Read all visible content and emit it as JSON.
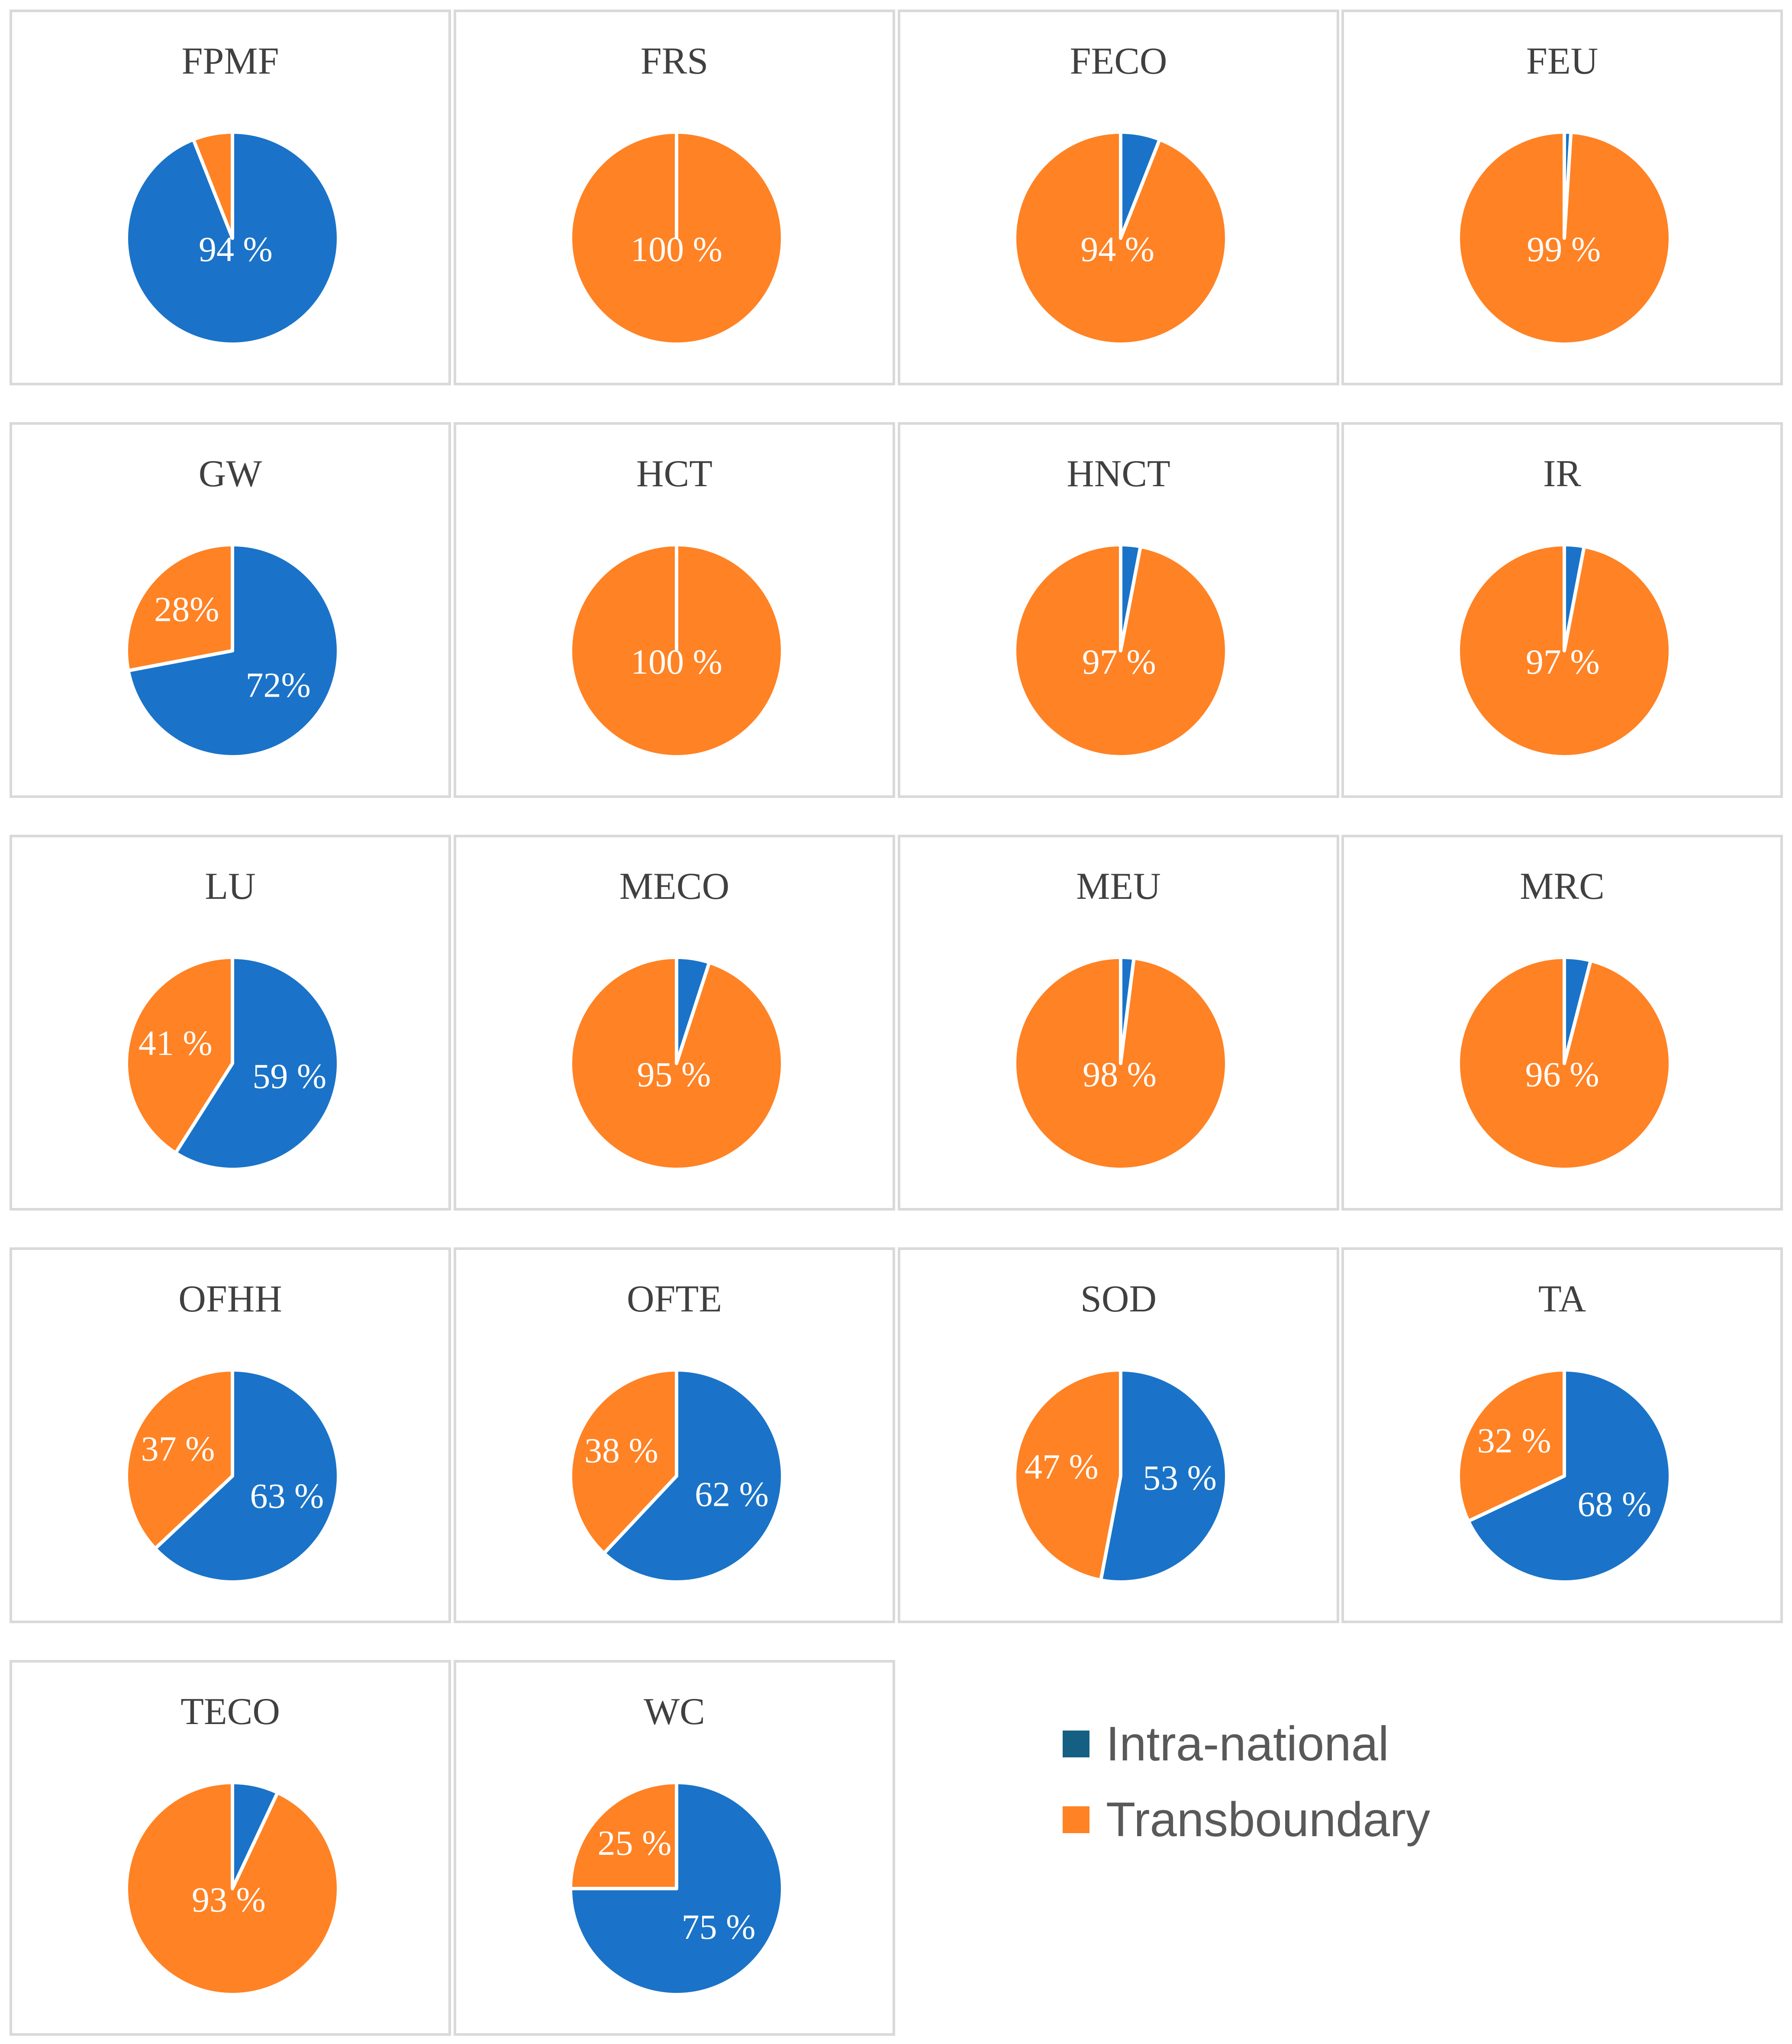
{
  "colors": {
    "intra_legend": "#156082",
    "intra_slice": "#1a73c8",
    "trans": "#ff8224"
  },
  "legend": {
    "intra_label": "Intra-national",
    "trans_label": "Transboundary"
  },
  "chart_data": [
    {
      "type": "pie",
      "title": "FPMF",
      "categories": [
        "Intra-national",
        "Transboundary"
      ],
      "values": [
        94,
        6
      ],
      "labels": [
        "94 %",
        ""
      ]
    },
    {
      "type": "pie",
      "title": "FRS",
      "categories": [
        "Intra-national",
        "Transboundary"
      ],
      "values": [
        0,
        100
      ],
      "labels": [
        "",
        "100 %"
      ]
    },
    {
      "type": "pie",
      "title": "FECO",
      "categories": [
        "Intra-national",
        "Transboundary"
      ],
      "values": [
        6,
        94
      ],
      "labels": [
        "",
        "94 %"
      ]
    },
    {
      "type": "pie",
      "title": "FEU",
      "categories": [
        "Intra-national",
        "Transboundary"
      ],
      "values": [
        1,
        99
      ],
      "labels": [
        "",
        "99 %"
      ]
    },
    {
      "type": "pie",
      "title": "GW",
      "categories": [
        "Intra-national",
        "Transboundary"
      ],
      "values": [
        72,
        28
      ],
      "labels": [
        "72%",
        "28%"
      ]
    },
    {
      "type": "pie",
      "title": "HCT",
      "categories": [
        "Intra-national",
        "Transboundary"
      ],
      "values": [
        0,
        100
      ],
      "labels": [
        "",
        "100 %"
      ]
    },
    {
      "type": "pie",
      "title": "HNCT",
      "categories": [
        "Intra-national",
        "Transboundary"
      ],
      "values": [
        3,
        97
      ],
      "labels": [
        "",
        "97 %"
      ]
    },
    {
      "type": "pie",
      "title": "IR",
      "categories": [
        "Intra-national",
        "Transboundary"
      ],
      "values": [
        3,
        97
      ],
      "labels": [
        "",
        "97 %"
      ]
    },
    {
      "type": "pie",
      "title": "LU",
      "categories": [
        "Intra-national",
        "Transboundary"
      ],
      "values": [
        59,
        41
      ],
      "labels": [
        "59 %",
        "41 %"
      ]
    },
    {
      "type": "pie",
      "title": "MECO",
      "categories": [
        "Intra-national",
        "Transboundary"
      ],
      "values": [
        5,
        95
      ],
      "labels": [
        "",
        "95 %"
      ]
    },
    {
      "type": "pie",
      "title": "MEU",
      "categories": [
        "Intra-national",
        "Transboundary"
      ],
      "values": [
        2,
        98
      ],
      "labels": [
        "",
        "98 %"
      ]
    },
    {
      "type": "pie",
      "title": "MRC",
      "categories": [
        "Intra-national",
        "Transboundary"
      ],
      "values": [
        4,
        96
      ],
      "labels": [
        "",
        "96 %"
      ]
    },
    {
      "type": "pie",
      "title": "OFHH",
      "categories": [
        "Intra-national",
        "Transboundary"
      ],
      "values": [
        63,
        37
      ],
      "labels": [
        "63 %",
        "37 %"
      ]
    },
    {
      "type": "pie",
      "title": "OFTE",
      "categories": [
        "Intra-national",
        "Transboundary"
      ],
      "values": [
        62,
        38
      ],
      "labels": [
        "62 %",
        "38 %"
      ]
    },
    {
      "type": "pie",
      "title": "SOD",
      "categories": [
        "Intra-national",
        "Transboundary"
      ],
      "values": [
        53,
        47
      ],
      "labels": [
        "53 %",
        "47 %"
      ]
    },
    {
      "type": "pie",
      "title": "TA",
      "categories": [
        "Intra-national",
        "Transboundary"
      ],
      "values": [
        68,
        32
      ],
      "labels": [
        "68 %",
        "32 %"
      ]
    },
    {
      "type": "pie",
      "title": "TECO",
      "categories": [
        "Intra-national",
        "Transboundary"
      ],
      "values": [
        7,
        93
      ],
      "labels": [
        "",
        "93 %"
      ]
    },
    {
      "type": "pie",
      "title": "WC",
      "categories": [
        "Intra-national",
        "Transboundary"
      ],
      "values": [
        75,
        25
      ],
      "labels": [
        "75 %",
        "25 %"
      ]
    }
  ]
}
